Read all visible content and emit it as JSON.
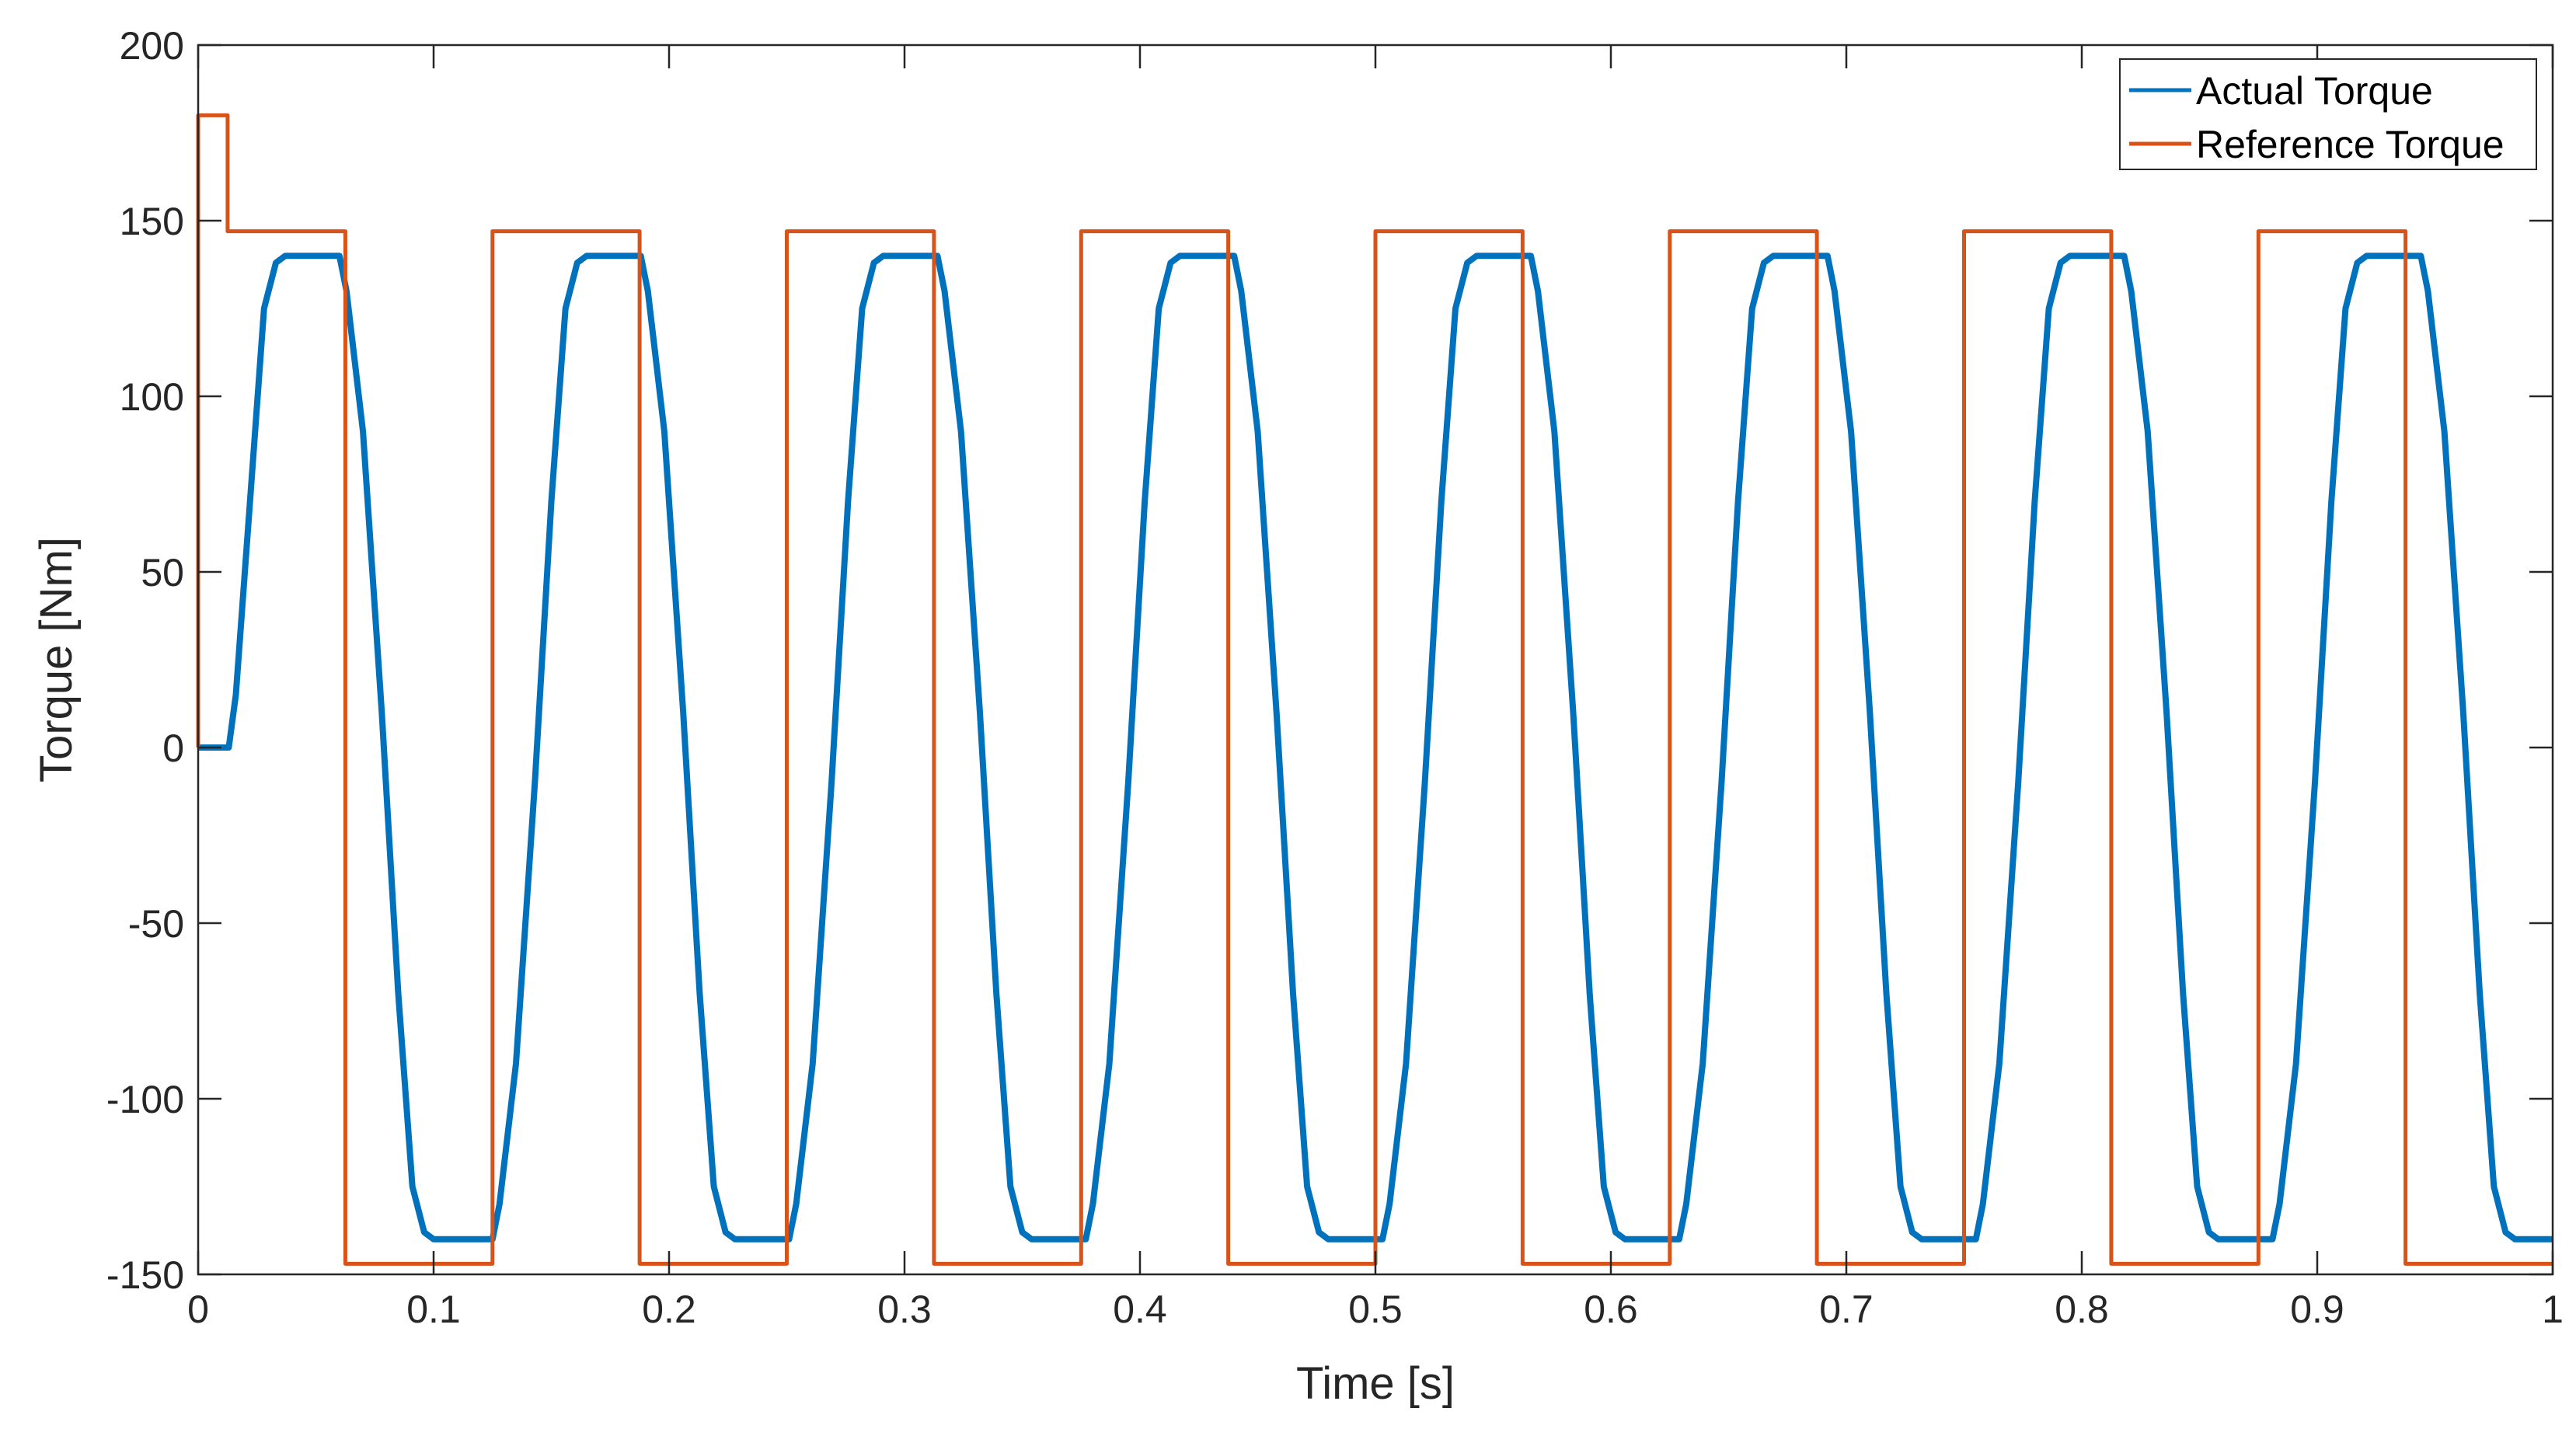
{
  "chart_data": {
    "type": "line",
    "title": "",
    "xlabel": "Time [s]",
    "ylabel": "Torque [Nm]",
    "xlim": [
      0,
      1
    ],
    "ylim": [
      -150,
      200
    ],
    "xticks": [
      0,
      0.1,
      0.2,
      0.3,
      0.4,
      0.5,
      0.6,
      0.7,
      0.8,
      0.9,
      1
    ],
    "xtick_labels": [
      "0",
      "0.1",
      "0.2",
      "0.3",
      "0.4",
      "0.5",
      "0.6",
      "0.7",
      "0.8",
      "0.9",
      "1"
    ],
    "yticks": [
      200,
      150,
      100,
      50,
      0,
      -50,
      -100,
      -150
    ],
    "ytick_labels": [
      "200",
      "150",
      "100",
      "50",
      "0",
      "-50",
      "-100",
      "-150"
    ],
    "grid": false,
    "box": true,
    "legend": {
      "position": "top-right",
      "entries": [
        "Actual Torque",
        "Reference Torque"
      ]
    },
    "series": [
      {
        "name": "Actual Torque",
        "color": "#0072BD",
        "x": [
          0,
          0.013,
          0.016,
          0.022,
          0.028,
          0.033,
          0.037,
          0.06,
          0.063,
          0.07,
          0.078,
          0.085,
          0.091,
          0.096,
          0.1,
          0.103,
          0.125,
          0.128,
          0.135,
          0.143,
          0.15,
          0.156,
          0.161,
          0.165,
          0.168,
          0.188,
          0.191,
          0.198,
          0.206,
          0.213,
          0.219,
          0.224,
          0.228,
          0.231,
          0.251,
          0.254,
          0.261,
          0.269,
          0.276,
          0.282,
          0.287,
          0.291,
          0.294,
          0.314,
          0.317,
          0.324,
          0.332,
          0.339,
          0.345,
          0.35,
          0.354,
          0.357,
          0.377,
          0.38,
          0.387,
          0.395,
          0.402,
          0.408,
          0.413,
          0.417,
          0.42,
          0.44,
          0.443,
          0.45,
          0.458,
          0.465,
          0.471,
          0.476,
          0.48,
          0.483,
          0.503,
          0.506,
          0.513,
          0.521,
          0.528,
          0.534,
          0.539,
          0.543,
          0.546,
          0.566,
          0.569,
          0.576,
          0.584,
          0.591,
          0.597,
          0.602,
          0.606,
          0.609,
          0.629,
          0.632,
          0.639,
          0.647,
          0.654,
          0.66,
          0.665,
          0.669,
          0.672,
          0.692,
          0.695,
          0.702,
          0.71,
          0.717,
          0.723,
          0.728,
          0.732,
          0.735,
          0.755,
          0.758,
          0.765,
          0.773,
          0.78,
          0.786,
          0.791,
          0.795,
          0.798,
          0.818,
          0.821,
          0.828,
          0.836,
          0.843,
          0.849,
          0.854,
          0.858,
          0.861,
          0.881,
          0.884,
          0.891,
          0.899,
          0.906,
          0.912,
          0.917,
          0.921,
          0.924,
          0.944,
          0.947,
          0.954,
          0.962,
          0.969,
          0.975,
          0.98,
          0.984,
          0.987,
          1.0
        ],
        "y": [
          0,
          0,
          15,
          70,
          125,
          138,
          140,
          140,
          130,
          90,
          10,
          -70,
          -125,
          -138,
          -140,
          -140,
          -140,
          -130,
          -90,
          -10,
          70,
          125,
          138,
          140,
          140,
          140,
          130,
          90,
          10,
          -70,
          -125,
          -138,
          -140,
          -140,
          -140,
          -130,
          -90,
          -10,
          70,
          125,
          138,
          140,
          140,
          140,
          130,
          90,
          10,
          -70,
          -125,
          -138,
          -140,
          -140,
          -140,
          -130,
          -90,
          -10,
          70,
          125,
          138,
          140,
          140,
          140,
          130,
          90,
          10,
          -70,
          -125,
          -138,
          -140,
          -140,
          -140,
          -130,
          -90,
          -10,
          70,
          125,
          138,
          140,
          140,
          140,
          130,
          90,
          10,
          -70,
          -125,
          -138,
          -140,
          -140,
          -140,
          -130,
          -90,
          -10,
          70,
          125,
          138,
          140,
          140,
          140,
          130,
          90,
          10,
          -70,
          -125,
          -138,
          -140,
          -140,
          -140,
          -130,
          -90,
          -10,
          70,
          125,
          138,
          140,
          140,
          140,
          130,
          90,
          10,
          -70,
          -125,
          -138,
          -140,
          -140,
          -140,
          -130,
          -90,
          -10,
          70,
          125,
          138,
          140,
          140,
          140,
          130,
          90,
          10,
          -70,
          -125,
          -138,
          -140,
          -140,
          -140
        ]
      },
      {
        "name": "Reference Torque",
        "color": "#D95319",
        "x": [
          0,
          0,
          0.0125,
          0.0125,
          0.0625,
          0.0625,
          0.125,
          0.125,
          0.1875,
          0.1875,
          0.25,
          0.25,
          0.3125,
          0.3125,
          0.375,
          0.375,
          0.4375,
          0.4375,
          0.5,
          0.5,
          0.5625,
          0.5625,
          0.625,
          0.625,
          0.6875,
          0.6875,
          0.75,
          0.75,
          0.8125,
          0.8125,
          0.875,
          0.875,
          0.9375,
          0.9375,
          1.0
        ],
        "y": [
          0,
          180,
          180,
          147,
          147,
          -147,
          -147,
          147,
          147,
          -147,
          -147,
          147,
          147,
          -147,
          -147,
          147,
          147,
          -147,
          -147,
          147,
          147,
          -147,
          -147,
          147,
          147,
          -147,
          -147,
          147,
          147,
          -147,
          -147,
          147,
          147,
          -147,
          -147
        ]
      }
    ]
  }
}
